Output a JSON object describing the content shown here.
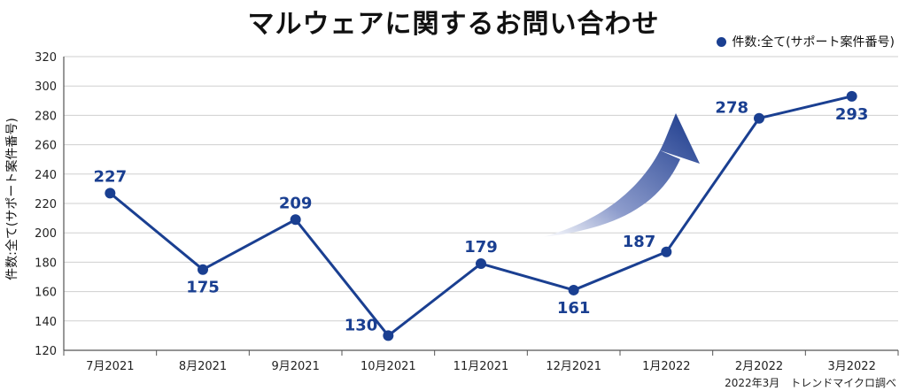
{
  "title": "マルウェアに関するお問い合わせ",
  "source_note": "2022年3月　トレンドマイクロ調べ",
  "colors": {
    "series": "#1a3f91",
    "grid": "#cfcfcf",
    "axis": "#555555"
  },
  "chart_data": {
    "type": "line",
    "ylabel": "件数:全て(サポート案件番号)",
    "categories": [
      "7月2021",
      "8月2021",
      "9月2021",
      "10月2021",
      "11月2021",
      "12月2021",
      "1月2022",
      "2月2022",
      "3月2022"
    ],
    "series": [
      {
        "name": "件数:全て(サポート案件番号)",
        "values": [
          227,
          175,
          209,
          130,
          179,
          161,
          187,
          278,
          293
        ]
      }
    ],
    "ylim": [
      120,
      320
    ],
    "yticks": [
      120,
      140,
      160,
      180,
      200,
      220,
      240,
      260,
      280,
      300,
      320
    ],
    "grid": true,
    "legend_position": "top-right",
    "label_positions": [
      "above",
      "below",
      "above",
      "left",
      "above",
      "below",
      "left",
      "left",
      "below"
    ]
  }
}
